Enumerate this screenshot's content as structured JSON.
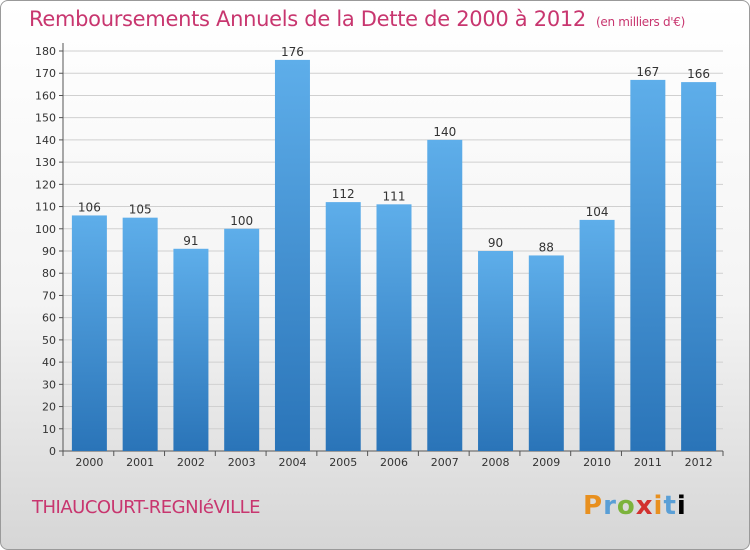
{
  "header": {
    "title": "Remboursements Annuels de la Dette de 2000 à 2012",
    "subtitle": "(en milliers d'€)"
  },
  "footer": {
    "commune": "THIAUCOURT-REGNIéVILLE",
    "brand": "Proxiti"
  },
  "colors": {
    "title": "#c8366f",
    "bar_top": "#5eaeea",
    "bar_bottom": "#2a74b8"
  },
  "chart_data": {
    "type": "bar",
    "title": "Remboursements Annuels de la Dette de 2000 à 2012",
    "categories": [
      "2000",
      "2001",
      "2002",
      "2003",
      "2004",
      "2005",
      "2006",
      "2007",
      "2008",
      "2009",
      "2010",
      "2011",
      "2012"
    ],
    "values": [
      106,
      105,
      91,
      100,
      176,
      112,
      111,
      140,
      90,
      88,
      104,
      167,
      166
    ],
    "ylim": [
      0,
      180
    ],
    "yticks": [
      0,
      10,
      20,
      30,
      40,
      50,
      60,
      70,
      80,
      90,
      100,
      110,
      120,
      130,
      140,
      150,
      160,
      170,
      180
    ],
    "grid": true,
    "data_labels": true
  }
}
